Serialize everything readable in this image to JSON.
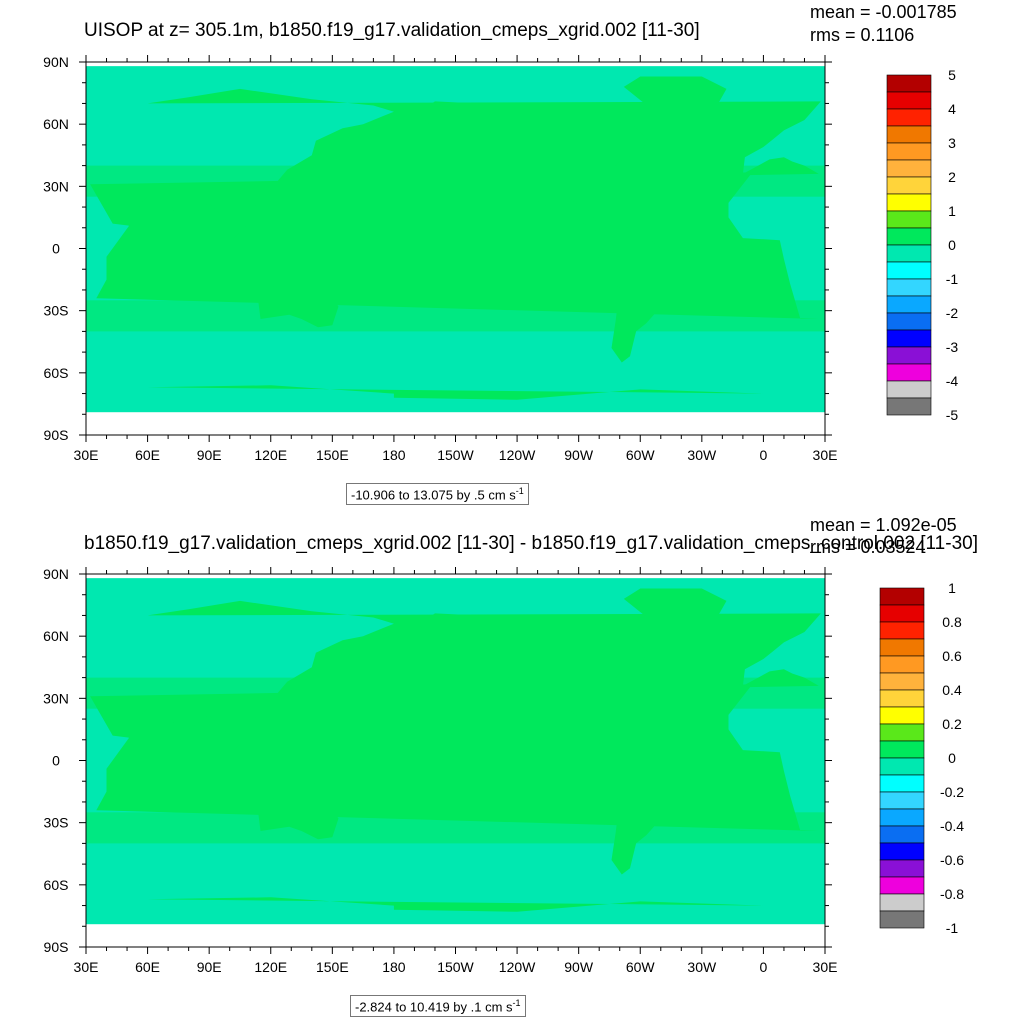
{
  "panels": [
    {
      "title": "UISOP at z= 305.1m, b1850.f19_g17.validation_cmeps_xgrid.002 [11-30]",
      "mean_text": "mean = -0.001785",
      "rms_text": "rms = 0.1106",
      "info_text": "-10.906 to 13.075 by .5 cm s",
      "info_sup": "-1"
    },
    {
      "title": "b1850.f19_g17.validation_cmeps_xgrid.002 [11-30] - b1850.f19_g17.validation_cmeps_control.002 [11-30]",
      "mean_text": "mean = 1.092e-05",
      "rms_text": "rms = 0.03524",
      "info_text": "-2.824 to 10.419 by .1 cm s",
      "info_sup": "-1"
    }
  ],
  "chart_data": [
    {
      "type": "heatmap",
      "title": "UISOP at z= 305.1m, b1850.f19_g17.validation_cmeps_xgrid.002 [11-30]",
      "x_tick_labels": [
        "30E",
        "60E",
        "90E",
        "120E",
        "150E",
        "180",
        "150W",
        "120W",
        "90W",
        "60W",
        "30W",
        "0",
        "30E"
      ],
      "y_tick_labels": [
        "90N",
        "60N",
        "30N",
        "0",
        "30S",
        "60S",
        "90S"
      ],
      "colorbar_levels": [
        "5",
        "4",
        "3",
        "2",
        "1",
        "0",
        "-1",
        "-2",
        "-3",
        "-4",
        "-5"
      ],
      "colorbar_colors": [
        "#b30000",
        "#e60000",
        "#ff2200",
        "#f07800",
        "#ff9922",
        "#ffb23c",
        "#ffd43a",
        "#ffff00",
        "#5ae81a",
        "#00e85c",
        "#00e8b0",
        "#00ffff",
        "#33d6ff",
        "#0aa8ff",
        "#0a6ef2",
        "#0000ff",
        "#8a10d6",
        "#ee00dd",
        "#cccccc",
        "#777777"
      ],
      "mean": -0.001785,
      "rms": 0.1106,
      "contour_min": -10.906,
      "contour_max": 13.075,
      "contour_interval": 0.5,
      "units": "cm s-1"
    },
    {
      "type": "heatmap",
      "title": "b1850.f19_g17.validation_cmeps_xgrid.002 [11-30] - b1850.f19_g17.validation_cmeps_control.002 [11-30]",
      "x_tick_labels": [
        "30E",
        "60E",
        "90E",
        "120E",
        "150E",
        "180",
        "150W",
        "120W",
        "90W",
        "60W",
        "30W",
        "0",
        "30E"
      ],
      "y_tick_labels": [
        "90N",
        "60N",
        "30N",
        "0",
        "30S",
        "60S",
        "90S"
      ],
      "colorbar_levels": [
        "1",
        "0.8",
        "0.6",
        "0.4",
        "0.2",
        "0",
        "-0.2",
        "-0.4",
        "-0.6",
        "-0.8",
        "-1"
      ],
      "colorbar_colors": [
        "#b30000",
        "#e60000",
        "#ff2200",
        "#f07800",
        "#ff9922",
        "#ffb23c",
        "#ffd43a",
        "#ffff00",
        "#5ae81a",
        "#00e85c",
        "#00e8b0",
        "#00ffff",
        "#33d6ff",
        "#0aa8ff",
        "#0a6ef2",
        "#0000ff",
        "#8a10d6",
        "#ee00dd",
        "#cccccc",
        "#777777"
      ],
      "mean": 1.092e-05,
      "rms": 0.03524,
      "contour_min": -2.824,
      "contour_max": 10.419,
      "contour_interval": 0.1,
      "units": "cm s-1"
    }
  ]
}
